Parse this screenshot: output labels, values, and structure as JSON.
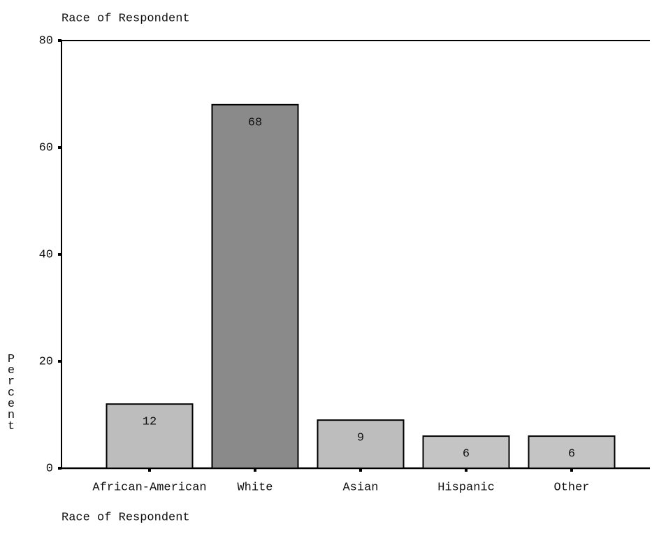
{
  "chart_data": {
    "type": "bar",
    "title": "Race of Respondent",
    "x_label": "Race of Respondent",
    "y_label": "Percent",
    "categories": [
      "African-American",
      "White",
      "Asian",
      "Hispanic",
      "Other"
    ],
    "values": [
      12,
      68,
      9,
      6,
      6
    ],
    "colors": [
      "#bdbdbd",
      "#8a8a8a",
      "#bdbdbd",
      "#c4c4c4",
      "#c4c4c4"
    ],
    "ylim": [
      0,
      80
    ],
    "yticks": [
      0,
      20,
      40,
      60,
      80
    ],
    "grid": false
  }
}
